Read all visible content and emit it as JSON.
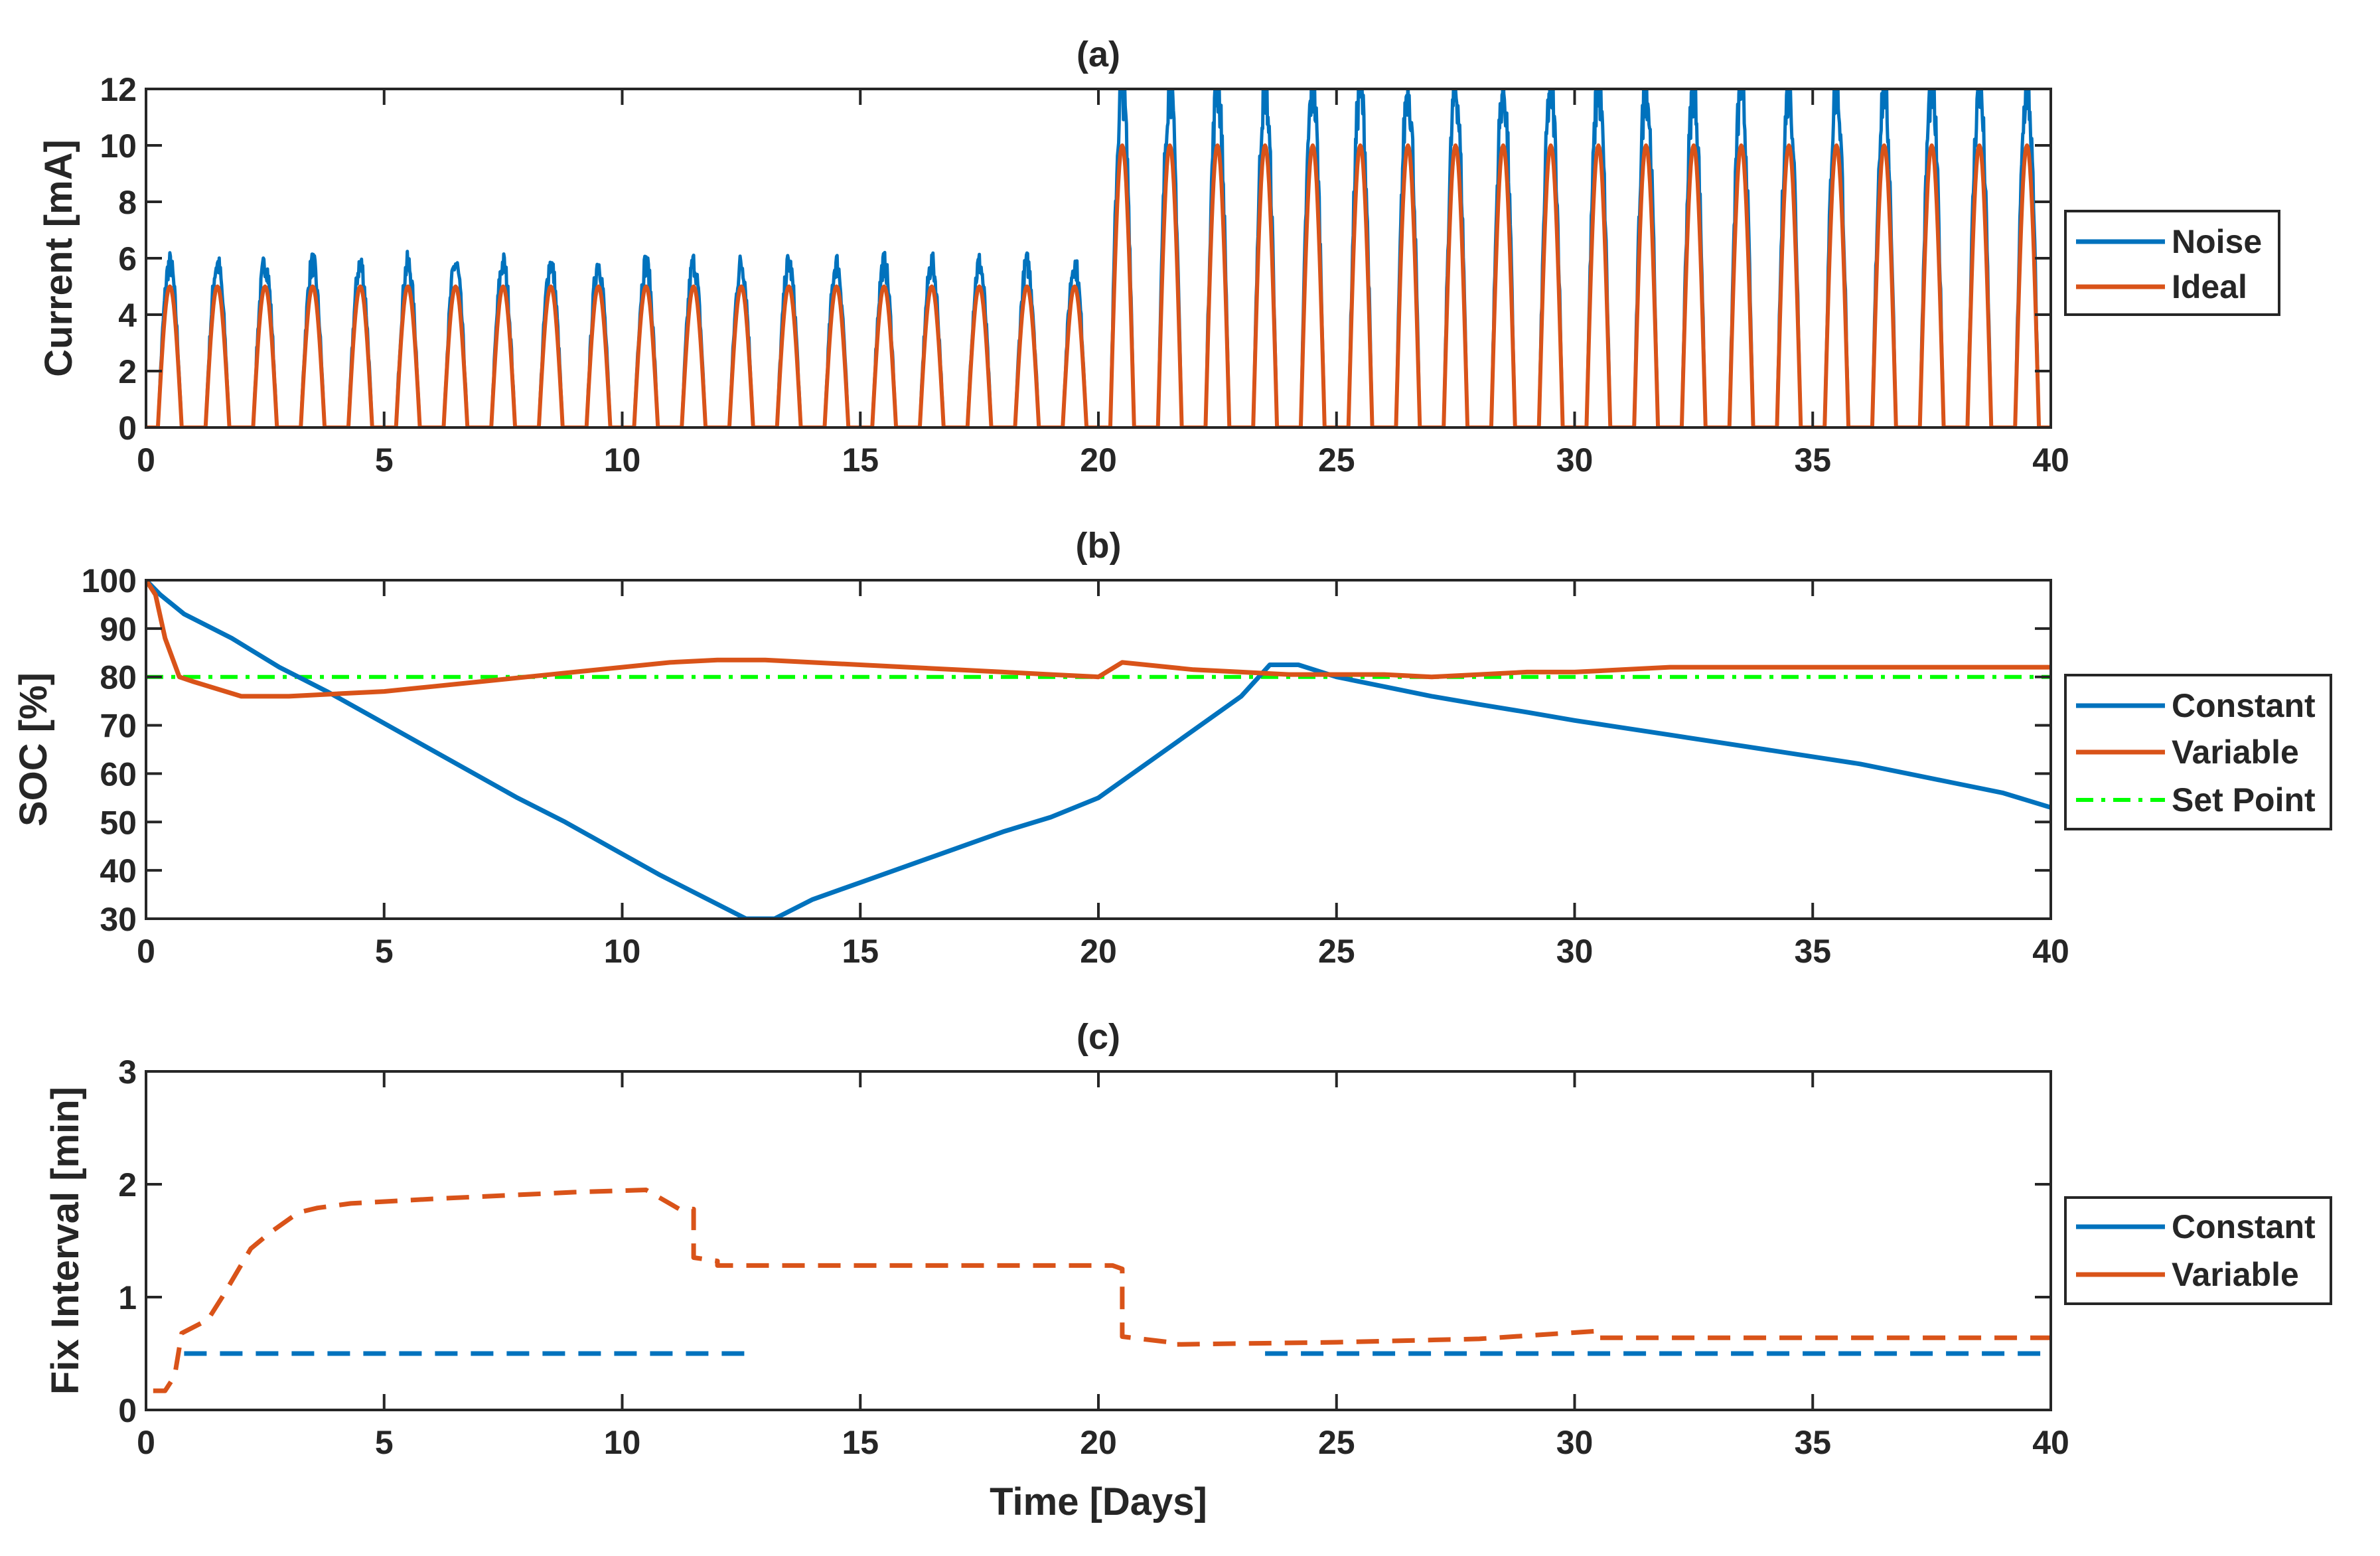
{
  "colors": {
    "blue": "#0072BD",
    "orange": "#D95319",
    "green": "#00FF00",
    "axis": "#262626"
  },
  "chart_data": [
    {
      "type": "line",
      "title": "(a)",
      "xlabel": "",
      "ylabel": "Current [mA]",
      "xlim": [
        0,
        40
      ],
      "ylim": [
        0,
        12
      ],
      "xticks": [
        "0",
        "5",
        "10",
        "15",
        "20",
        "25",
        "30",
        "35",
        "40"
      ],
      "yticks": [
        "0",
        "2",
        "4",
        "6",
        "8",
        "10",
        "12"
      ],
      "legend": [
        "Noise",
        "Ideal"
      ],
      "legend_position": "outside-right",
      "series": [
        {
          "name": "Noise",
          "color": "#0072BD",
          "pattern": "daily half-sine pulses with noise",
          "peak_days_0_20": 5.8,
          "peak_days_20_40": 12,
          "pulse_width_days": 0.5
        },
        {
          "name": "Ideal",
          "color": "#D95319",
          "pattern": "daily half-sine pulses",
          "peak_days_0_20": 5,
          "peak_days_20_40": 10,
          "pulse_width_days": 0.5
        }
      ]
    },
    {
      "type": "line",
      "title": "(b)",
      "xlabel": "",
      "ylabel": "SOC [%]",
      "xlim": [
        0,
        40
      ],
      "ylim": [
        30,
        100
      ],
      "xticks": [
        "0",
        "5",
        "10",
        "15",
        "20",
        "25",
        "30",
        "35",
        "40"
      ],
      "yticks": [
        "30",
        "40",
        "50",
        "60",
        "70",
        "80",
        "90",
        "100"
      ],
      "legend": [
        "Constant",
        "Variable",
        "Set Point"
      ],
      "legend_position": "outside-right",
      "series": [
        {
          "name": "Constant",
          "color": "#0072BD",
          "style": "solid",
          "x": [
            0,
            0.3,
            0.8,
            1.8,
            2.8,
            3.8,
            4.8,
            5.8,
            6.8,
            7.8,
            8.8,
            9.8,
            10.8,
            11.8,
            12.6,
            13.2,
            14.0,
            15.0,
            16.0,
            17.0,
            18.0,
            19.0,
            20.0,
            21.0,
            22.0,
            23.0,
            23.6,
            24.2,
            25.0,
            26.0,
            27.0,
            28.0,
            29.0,
            30.0,
            31.0,
            32.0,
            33.0,
            34.0,
            35.0,
            36.0,
            37.0,
            38.0,
            39.0,
            40.0
          ],
          "y": [
            100,
            97,
            93,
            88,
            82,
            77,
            71.5,
            66,
            60.5,
            55,
            50,
            44.5,
            39,
            34,
            30,
            30,
            34,
            37.5,
            41,
            44.5,
            48,
            51,
            55,
            62,
            69,
            76,
            82.5,
            82.5,
            80,
            78,
            76,
            74.3,
            72.7,
            71,
            69.5,
            68,
            66.5,
            65,
            63.5,
            62,
            60,
            58,
            56,
            53
          ]
        },
        {
          "name": "Variable",
          "color": "#D95319",
          "style": "solid",
          "x": [
            0,
            0.2,
            0.4,
            0.7,
            1.0,
            2.0,
            3.0,
            4.0,
            5.0,
            6.0,
            7.0,
            8.0,
            9.0,
            10.0,
            11.0,
            12.0,
            13.0,
            14.0,
            15.0,
            16.0,
            17.0,
            18.0,
            19.0,
            20.0,
            20.5,
            21.0,
            22.0,
            23.0,
            24.0,
            25.0,
            26.0,
            27.0,
            28.0,
            29.0,
            30.0,
            31.0,
            32.0,
            33.0,
            34.0,
            35.0,
            36.0,
            37.0,
            38.0,
            39.0,
            40.0
          ],
          "y": [
            100,
            97,
            88,
            80,
            79,
            76,
            76,
            76.5,
            77,
            78,
            79,
            80,
            81,
            82,
            83,
            83.5,
            83.5,
            83,
            82.5,
            82,
            81.5,
            81,
            80.5,
            80,
            83,
            82.5,
            81.5,
            81,
            80.5,
            80.5,
            80.5,
            80,
            80.5,
            81,
            81,
            81.5,
            82,
            82,
            82,
            82,
            82,
            82,
            82,
            82,
            82
          ]
        },
        {
          "name": "Set Point",
          "color": "#00FF00",
          "style": "dash-dot",
          "x": [
            0,
            40
          ],
          "y": [
            80,
            80
          ]
        }
      ]
    },
    {
      "type": "line",
      "title": "(c)",
      "xlabel": "Time [Days]",
      "ylabel": "Fix Interval [min]",
      "xlim": [
        0,
        40
      ],
      "ylim": [
        0,
        3
      ],
      "xticks": [
        "0",
        "5",
        "10",
        "15",
        "20",
        "25",
        "30",
        "35",
        "40"
      ],
      "yticks": [
        "0",
        "1",
        "2",
        "3"
      ],
      "legend": [
        "Constant",
        "Variable"
      ],
      "legend_position": "outside-right",
      "series": [
        {
          "name": "Constant",
          "color": "#0072BD",
          "style": "dashed",
          "segments": [
            {
              "x": [
                0.8,
                12.6
              ],
              "y": [
                0.5,
                0.5
              ]
            },
            {
              "x": [
                23.5,
                40
              ],
              "y": [
                0.5,
                0.5
              ]
            }
          ]
        },
        {
          "name": "Variable",
          "color": "#D95319",
          "style": "dashed",
          "x": [
            0.15,
            0.4,
            0.6,
            0.75,
            1.3,
            1.3,
            1.6,
            2.2,
            2.2,
            2.6,
            3.2,
            3.2,
            3.6,
            4.3,
            4.3,
            6,
            7.5,
            9,
            10.5,
            10.5,
            11.2,
            11.5,
            11.5,
            12.0,
            12.0,
            14,
            17,
            20.3,
            20.5,
            20.5,
            21.5,
            21.5,
            25,
            28,
            30.5,
            30.5,
            33,
            36,
            40
          ],
          "y": [
            0.17,
            0.17,
            0.3,
            0.68,
            0.8,
            0.8,
            1.0,
            1.43,
            1.43,
            1.57,
            1.75,
            1.75,
            1.79,
            1.83,
            1.83,
            1.87,
            1.9,
            1.93,
            1.95,
            1.95,
            1.78,
            1.78,
            1.35,
            1.32,
            1.28,
            1.28,
            1.28,
            1.28,
            1.25,
            0.65,
            0.6,
            0.58,
            0.6,
            0.63,
            0.7,
            0.64,
            0.64,
            0.64,
            0.64
          ]
        }
      ]
    }
  ]
}
